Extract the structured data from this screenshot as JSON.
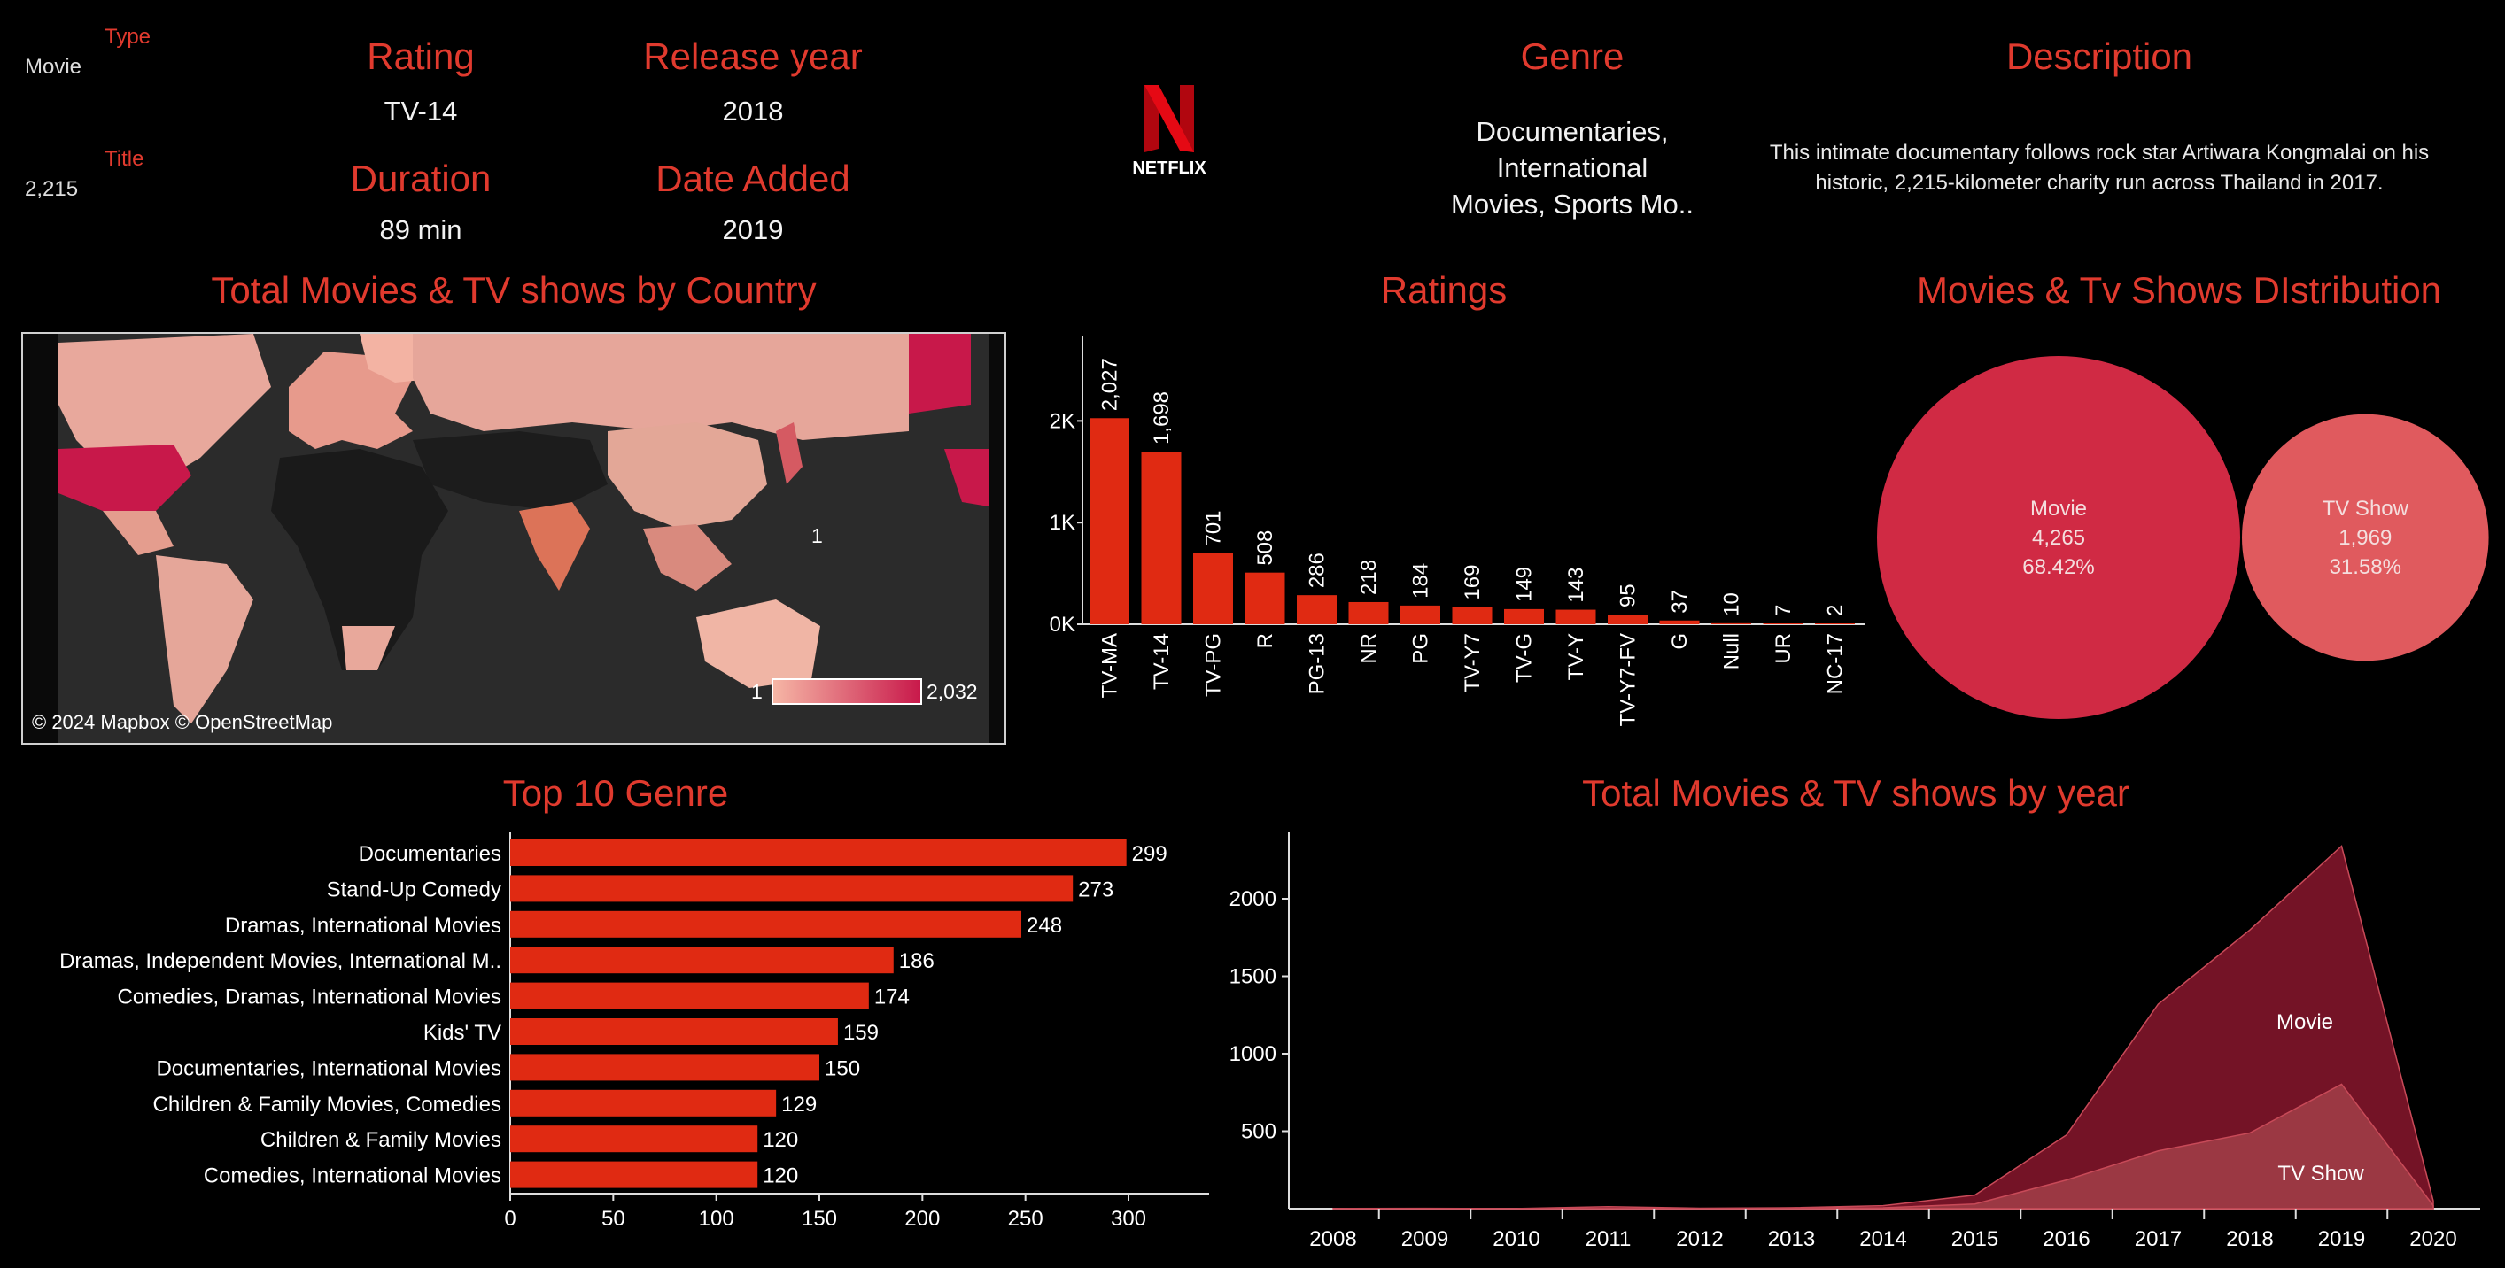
{
  "detail": {
    "type_label": "Type",
    "type_value": "Movie",
    "title_label": "Title",
    "title_value": "2,215",
    "rating_label": "Rating",
    "rating_value": "TV-14",
    "release_label": "Release year",
    "release_value": "2018",
    "duration_label": "Duration",
    "duration_value": "89 min",
    "date_added_label": "Date Added",
    "date_added_value": "2019",
    "logo_text": "NETFLIX",
    "genre_label": "Genre",
    "genre_value": [
      "Documentaries,",
      "International",
      "Movies, Sports Mo.."
    ],
    "description_label": "Description",
    "description_value": [
      "This intimate documentary follows rock star Artiwara Kongmalai on his",
      "historic, 2,215-kilometer charity run across Thailand in 2017."
    ]
  },
  "map": {
    "title": "Total Movies & TV shows by Country",
    "attribution": "© 2024 Mapbox © OpenStreetMap",
    "legend_min": "1",
    "legend_max": "2,032",
    "colors": {
      "low": "#f6b7a6",
      "high": "#c8184a"
    }
  },
  "colors": {
    "accent": "#e03a2e",
    "bar": "#e02a12",
    "movie_bubble": "#d02a44",
    "tv_bubble": "#e05a5e",
    "movie_area": "#7a1428",
    "tv_area": "#a8454e"
  },
  "chart_data": [
    {
      "type": "bar",
      "title": "Ratings",
      "categories": [
        "TV-MA",
        "TV-14",
        "TV-PG",
        "R",
        "PG-13",
        "NR",
        "PG",
        "TV-Y7",
        "TV-G",
        "TV-Y",
        "TV-Y7-FV",
        "G",
        "Null",
        "UR",
        "NC-17"
      ],
      "values": [
        2027,
        1698,
        701,
        508,
        286,
        218,
        184,
        169,
        149,
        143,
        95,
        37,
        10,
        7,
        2
      ],
      "value_labels": [
        "2,027",
        "1,698",
        "701",
        "508",
        "286",
        "218",
        "184",
        "169",
        "149",
        "143",
        "95",
        "37",
        "10",
        "7",
        "2"
      ],
      "yticks": [
        "0K",
        "1K",
        "2K"
      ],
      "ylim": [
        0,
        2700
      ]
    },
    {
      "type": "pie",
      "title": "Movies & Tv Shows DIstribution",
      "labels": [
        "Movie",
        "TV Show"
      ],
      "values": [
        4265,
        1969
      ],
      "value_labels": [
        "4,265",
        "1,969"
      ],
      "percent_labels": [
        "68.42%",
        "31.58%"
      ]
    },
    {
      "type": "bar",
      "orientation": "horizontal",
      "title": "Top 10 Genre",
      "categories": [
        "Documentaries",
        "Stand-Up Comedy",
        "Dramas, International Movies",
        "Dramas, Independent Movies, International M..",
        "Comedies, Dramas, International Movies",
        "Kids' TV",
        "Documentaries, International Movies",
        "Children & Family Movies, Comedies",
        "Children & Family Movies",
        "Comedies, International Movies"
      ],
      "values": [
        299,
        273,
        248,
        186,
        174,
        159,
        150,
        129,
        120,
        120
      ],
      "xticks": [
        "0",
        "50",
        "100",
        "150",
        "200",
        "250",
        "300"
      ],
      "xlim": [
        0,
        340
      ]
    },
    {
      "type": "area",
      "title": "Total Movies & TV shows by year",
      "x": [
        "2008",
        "2009",
        "2010",
        "2011",
        "2012",
        "2013",
        "2014",
        "2015",
        "2016",
        "2017",
        "2018",
        "2019",
        "2020"
      ],
      "series": [
        {
          "name": "Movie",
          "values": [
            1,
            2,
            1,
            13,
            3,
            6,
            19,
            88,
            476,
            1320,
            1799,
            2340,
            50
          ]
        },
        {
          "name": "TV Show",
          "values": [
            0,
            0,
            0,
            0,
            0,
            5,
            6,
            30,
            185,
            373,
            489,
            803,
            20
          ]
        }
      ],
      "yticks": [
        "500",
        "1000",
        "1500",
        "2000"
      ],
      "ylim": [
        0,
        2450
      ]
    }
  ]
}
